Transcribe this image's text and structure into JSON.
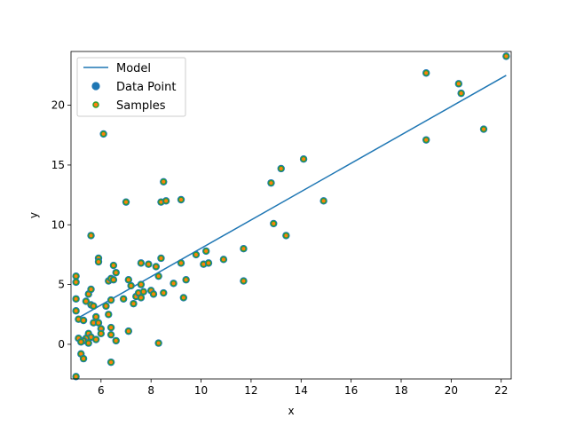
{
  "chart_data": {
    "type": "scatter",
    "title": "",
    "xlabel": "x",
    "ylabel": "y",
    "xlim": [
      4.8,
      22.4
    ],
    "ylim": [
      -2.9,
      24.5
    ],
    "x_ticks": [
      6,
      8,
      10,
      12,
      14,
      16,
      18,
      20,
      22
    ],
    "y_ticks": [
      0,
      5,
      10,
      15,
      20
    ],
    "grid": false,
    "legend_position": "top-left",
    "legend": [
      "Model",
      "Data Point",
      "Samples"
    ],
    "colors": {
      "model_line": "#1f77b4",
      "data_point": "#1f77b4",
      "sample_face": "#ff7f0e",
      "sample_edge": "#2ca02c"
    },
    "model": {
      "x": [
        5.0,
        22.2
      ],
      "y": [
        2.1,
        22.5
      ]
    },
    "points": [
      [
        6.1,
        17.6
      ],
      [
        7.0,
        11.9
      ],
      [
        8.4,
        11.9
      ],
      [
        8.6,
        12.0
      ],
      [
        8.5,
        13.6
      ],
      [
        9.2,
        12.1
      ],
      [
        12.8,
        13.5
      ],
      [
        13.2,
        14.7
      ],
      [
        14.1,
        15.5
      ],
      [
        14.9,
        12.0
      ],
      [
        12.9,
        10.1
      ],
      [
        13.4,
        9.1
      ],
      [
        19.0,
        22.7
      ],
      [
        20.3,
        21.8
      ],
      [
        20.4,
        21.0
      ],
      [
        19.0,
        17.1
      ],
      [
        21.3,
        18.0
      ],
      [
        22.2,
        24.1
      ],
      [
        5.0,
        5.7
      ],
      [
        5.0,
        5.2
      ],
      [
        5.0,
        3.8
      ],
      [
        5.0,
        2.8
      ],
      [
        5.1,
        2.1
      ],
      [
        5.3,
        2.0
      ],
      [
        5.4,
        3.6
      ],
      [
        5.5,
        4.2
      ],
      [
        5.6,
        4.6
      ],
      [
        5.6,
        3.3
      ],
      [
        5.7,
        3.2
      ],
      [
        5.8,
        2.3
      ],
      [
        5.7,
        1.8
      ],
      [
        5.9,
        1.8
      ],
      [
        5.5,
        0.9
      ],
      [
        5.6,
        0.6
      ],
      [
        5.4,
        0.5
      ],
      [
        5.3,
        0.3
      ],
      [
        5.1,
        0.5
      ],
      [
        5.2,
        0.2
      ],
      [
        5.5,
        0.1
      ],
      [
        5.8,
        0.4
      ],
      [
        5.6,
        9.1
      ],
      [
        5.9,
        7.2
      ],
      [
        5.9,
        6.9
      ],
      [
        6.0,
        1.3
      ],
      [
        6.0,
        0.9
      ],
      [
        6.2,
        3.2
      ],
      [
        6.3,
        2.5
      ],
      [
        6.3,
        5.3
      ],
      [
        6.4,
        5.5
      ],
      [
        6.4,
        1.4
      ],
      [
        6.4,
        0.8
      ],
      [
        6.4,
        3.7
      ],
      [
        6.5,
        6.6
      ],
      [
        6.6,
        6.0
      ],
      [
        6.5,
        5.4
      ],
      [
        6.6,
        0.3
      ],
      [
        6.9,
        3.8
      ],
      [
        7.1,
        5.4
      ],
      [
        7.2,
        4.9
      ],
      [
        7.3,
        3.4
      ],
      [
        7.4,
        4.0
      ],
      [
        7.6,
        6.8
      ],
      [
        7.5,
        4.3
      ],
      [
        7.6,
        3.9
      ],
      [
        7.6,
        5.0
      ],
      [
        7.7,
        4.4
      ],
      [
        7.9,
        6.7
      ],
      [
        8.0,
        4.5
      ],
      [
        8.1,
        4.2
      ],
      [
        8.2,
        6.5
      ],
      [
        8.3,
        5.7
      ],
      [
        8.4,
        7.2
      ],
      [
        8.5,
        4.3
      ],
      [
        8.9,
        5.1
      ],
      [
        9.2,
        6.8
      ],
      [
        9.3,
        3.9
      ],
      [
        9.4,
        5.4
      ],
      [
        9.8,
        7.5
      ],
      [
        10.1,
        6.7
      ],
      [
        10.2,
        7.8
      ],
      [
        10.3,
        6.8
      ],
      [
        10.9,
        7.1
      ],
      [
        11.7,
        8.0
      ],
      [
        11.7,
        5.3
      ],
      [
        5.2,
        -0.8
      ],
      [
        5.3,
        -1.2
      ],
      [
        5.0,
        -2.7
      ],
      [
        6.4,
        -1.5
      ],
      [
        7.1,
        1.1
      ],
      [
        8.3,
        0.1
      ]
    ]
  }
}
